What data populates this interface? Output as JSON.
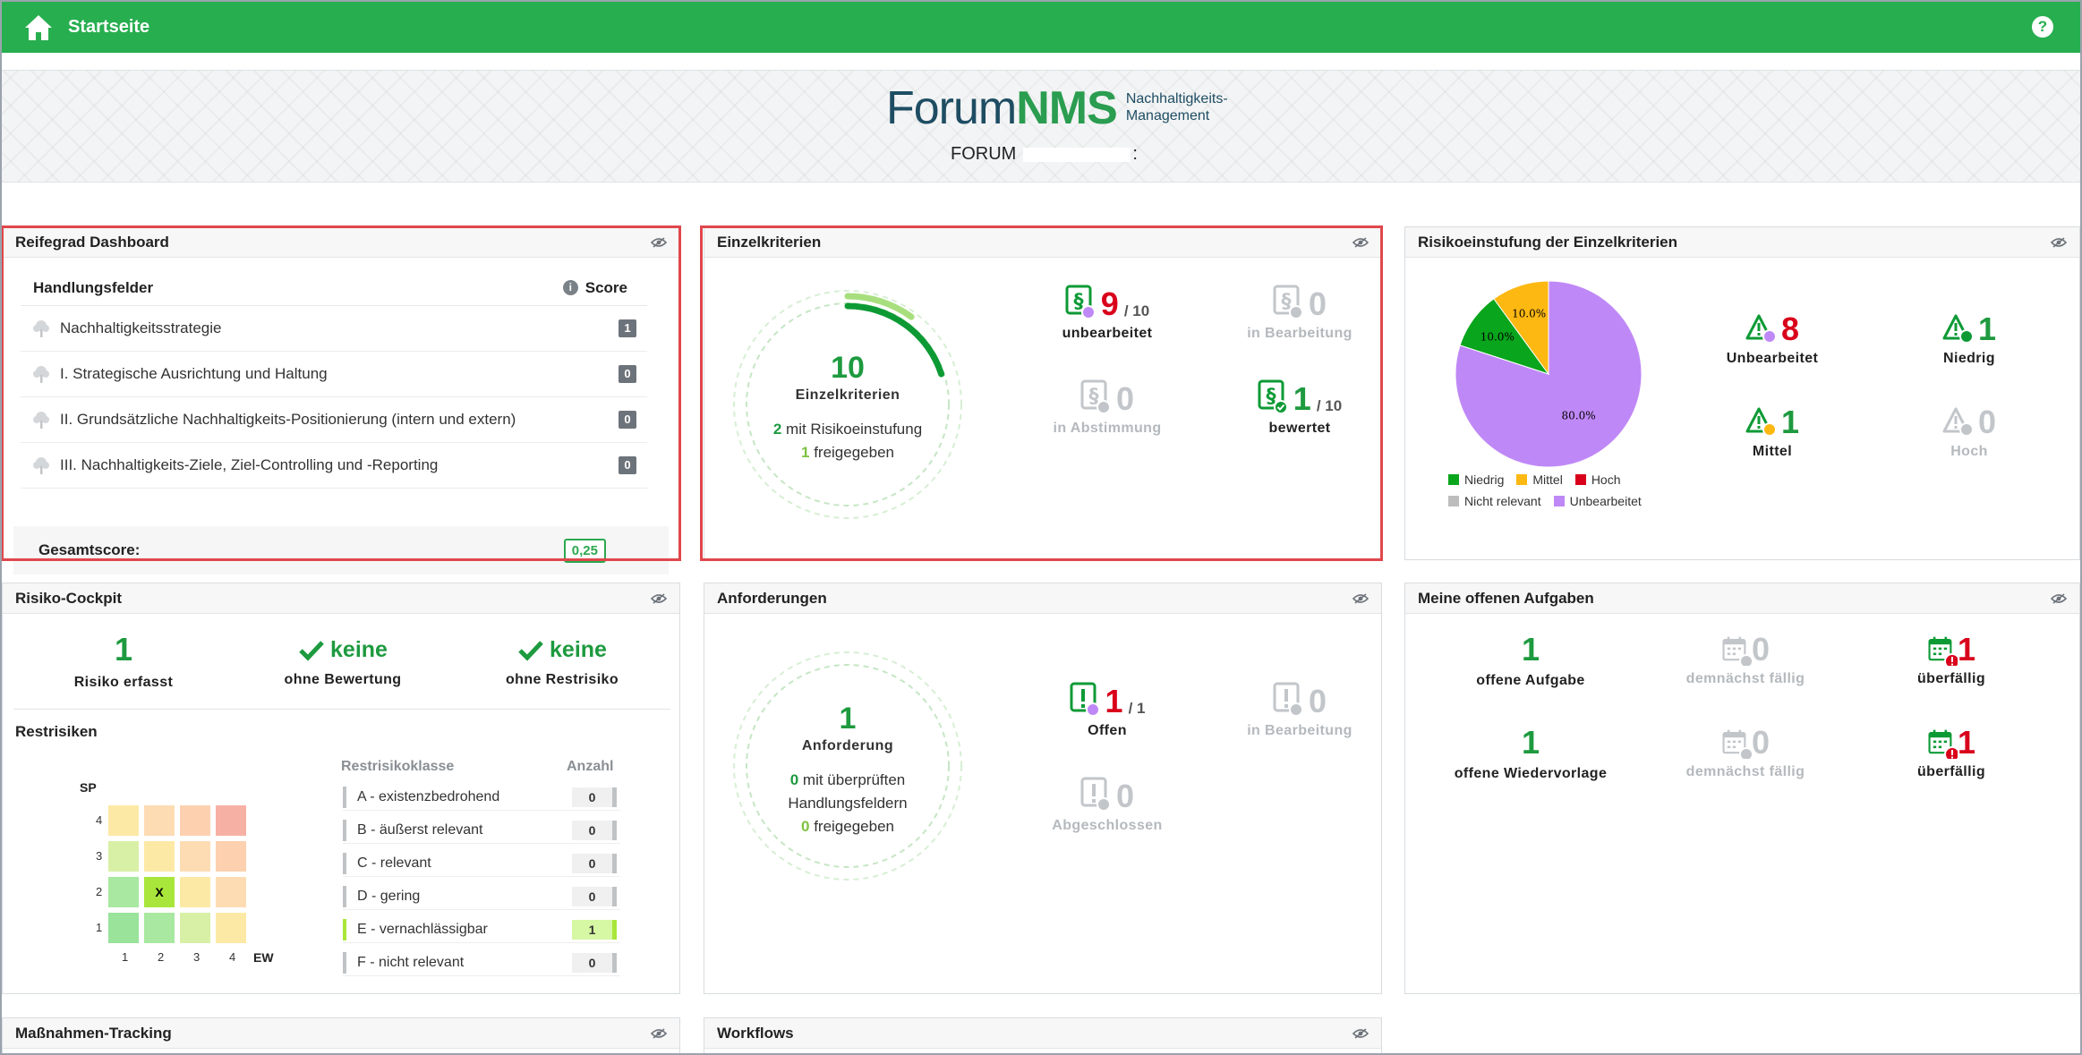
{
  "topbar": {
    "title": "Startseite",
    "help": "?"
  },
  "banner": {
    "logo_forum": "Forum",
    "logo_nms": "NMS",
    "logo_sub_line1": "Nachhaltigkeits-",
    "logo_sub_line2": "Management",
    "company": "FORUM",
    "company_colon": ":"
  },
  "reifegrad": {
    "title": "Reifegrad Dashboard",
    "col_fields": "Handlungsfelder",
    "col_score": "Score",
    "rows": [
      {
        "label": "Nachhaltigkeitsstrategie",
        "score": "1"
      },
      {
        "label": "I. Strategische Ausrichtung und Haltung",
        "score": "0"
      },
      {
        "label": "II. Grundsätzliche Nachhaltigkeits-Positionierung (intern und extern)",
        "score": "0"
      },
      {
        "label": "III. Nachhaltigkeits-Ziele, Ziel-Controlling und -Reporting",
        "score": "0"
      }
    ],
    "total_label": "Gesamtscore:",
    "total_value": "0,25"
  },
  "einzelkriterien": {
    "title": "Einzelkriterien",
    "progress": {
      "rated": 1,
      "assessed": 2,
      "total": 10
    },
    "center_num": "10",
    "center_label": "Einzelkriterien",
    "sub1_num": "2",
    "sub1_text": " mit Risikoeinstufung",
    "sub2_num": "1",
    "sub2_text": " freigegeben",
    "stats": {
      "unbearbeitet": {
        "num": "9",
        "of": "/ 10",
        "label": "unbearbeitet"
      },
      "in_bearbeitung": {
        "num": "0",
        "label": "in Bearbeitung"
      },
      "in_abstimmung": {
        "num": "0",
        "label": "in Abstimmung"
      },
      "bewertet": {
        "num": "1",
        "of": "/ 10",
        "label": "bewertet"
      }
    }
  },
  "risikoeinstufung": {
    "title": "Risikoeinstufung der Einzelkriterien",
    "chart_data": {
      "type": "pie",
      "slices": [
        {
          "name": "Unbearbeitet",
          "value": 80.0,
          "label": "80.0%",
          "color": "#bf88f7"
        },
        {
          "name": "Niedrig",
          "value": 10.0,
          "label": "10.0%",
          "color": "#09a51c"
        },
        {
          "name": "Mittel",
          "value": 10.0,
          "label": "10.0%",
          "color": "#fdb812"
        }
      ],
      "legend": [
        {
          "name": "Niedrig",
          "color": "#09a51c"
        },
        {
          "name": "Mittel",
          "color": "#fdb812"
        },
        {
          "name": "Hoch",
          "color": "#d9001b"
        },
        {
          "name": "Nicht relevant",
          "color": "#bdbdbd"
        },
        {
          "name": "Unbearbeitet",
          "color": "#bf88f7"
        }
      ],
      "legend_placement": "bottom"
    },
    "stats": {
      "unbearbeitet": {
        "num": "8",
        "label": "Unbearbeitet"
      },
      "niedrig": {
        "num": "1",
        "label": "Niedrig"
      },
      "mittel": {
        "num": "1",
        "label": "Mittel"
      },
      "hoch": {
        "num": "0",
        "label": "Hoch"
      }
    }
  },
  "risiko_cockpit": {
    "title": "Risiko-Cockpit",
    "erfasst_num": "1",
    "erfasst_label": "Risiko erfasst",
    "bewertung_value": "keine",
    "bewertung_label": "ohne Bewertung",
    "restrisiko_value": "keine",
    "restrisiko_label": "ohne Restrisiko",
    "restrisiken_title": "Restrisiken",
    "matrix": {
      "y_label": "SP",
      "x_label": "EW",
      "y_ticks": [
        "4",
        "3",
        "2",
        "1"
      ],
      "x_ticks": [
        "1",
        "2",
        "3",
        "4"
      ],
      "mark": "X",
      "mark_cell": {
        "ew": 2,
        "sp": 2
      }
    },
    "klasse_head": "Restrisikoklasse",
    "anzahl_head": "Anzahl",
    "klassen": [
      {
        "label": "A - existenzbedrohend",
        "count": "0"
      },
      {
        "label": "B - äußerst relevant",
        "count": "0"
      },
      {
        "label": "C - relevant",
        "count": "0"
      },
      {
        "label": "D - gering",
        "count": "0"
      },
      {
        "label": "E - vernachlässigbar",
        "count": "1"
      },
      {
        "label": "F - nicht relevant",
        "count": "0"
      }
    ]
  },
  "anforderungen": {
    "title": "Anforderungen",
    "center_num": "1",
    "center_label": "Anforderung",
    "sub1_num": "0",
    "sub1_text": " mit überprüften",
    "sub1_text2": "Handlungsfeldern",
    "sub2_num": "0",
    "sub2_text": " freigegeben",
    "stats": {
      "offen": {
        "num": "1",
        "of": "/ 1",
        "label": "Offen"
      },
      "in_bearbeitung": {
        "num": "0",
        "label": "in Bearbeitung"
      },
      "abgeschlossen": {
        "num": "0",
        "label": "Abgeschlossen"
      }
    }
  },
  "aufgaben": {
    "title": "Meine offenen Aufgaben",
    "rows": [
      {
        "num": "1",
        "label": "offene Aufgabe",
        "soon_num": "0",
        "soon_label": "demnächst fällig",
        "over_num": "1",
        "over_label": "überfällig"
      },
      {
        "num": "1",
        "label": "offene Wiedervorlage",
        "soon_num": "0",
        "soon_label": "demnächst fällig",
        "over_num": "1",
        "over_label": "überfällig"
      }
    ]
  },
  "massnahmen": {
    "title": "Maßnahmen-Tracking"
  },
  "workflows": {
    "title": "Workflows"
  }
}
